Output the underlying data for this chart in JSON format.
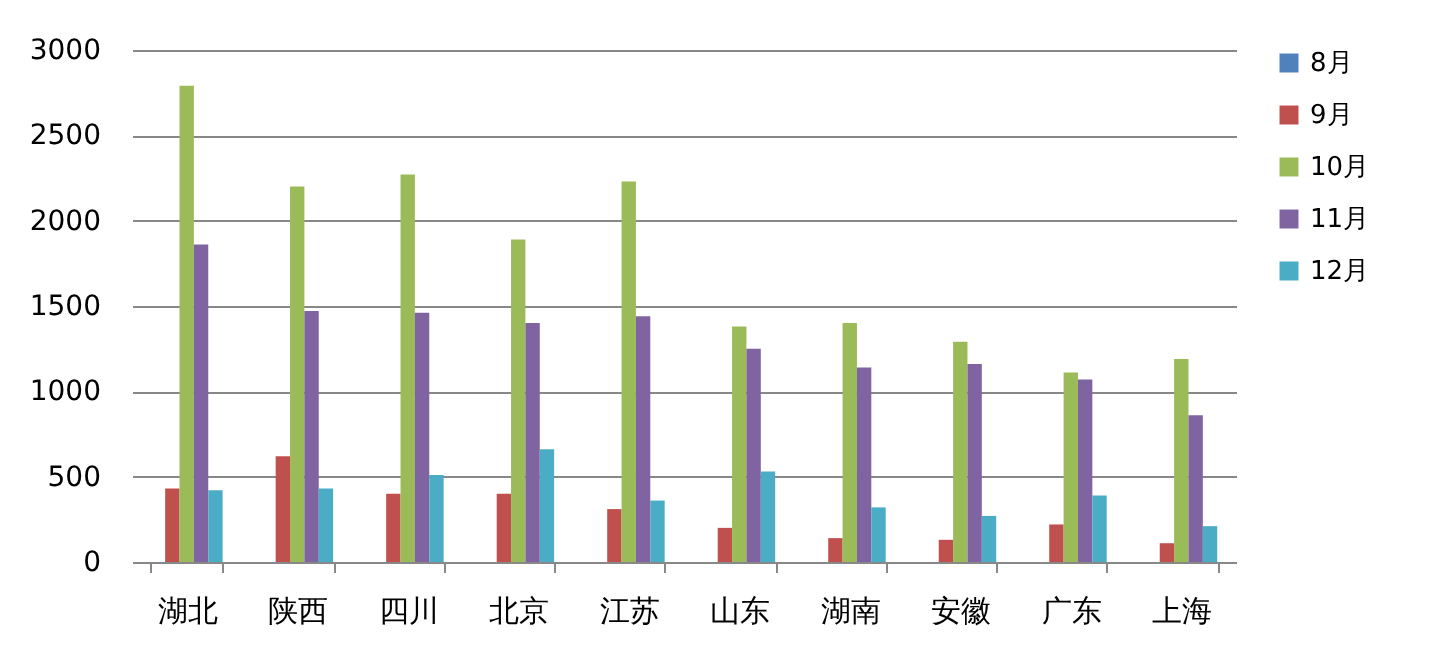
{
  "chart_data": {
    "type": "bar",
    "categories": [
      "湖北",
      "陕西",
      "四川",
      "北京",
      "江苏",
      "山东",
      "湖南",
      "安徽",
      "广东",
      "上海"
    ],
    "series": [
      {
        "name": "8月",
        "color": "#4f81bd",
        "values": [
          0,
          0,
          0,
          0,
          0,
          0,
          0,
          0,
          0,
          0
        ]
      },
      {
        "name": "9月",
        "color": "#c0504d",
        "values": [
          430,
          620,
          400,
          400,
          310,
          200,
          140,
          130,
          220,
          110
        ]
      },
      {
        "name": "10月",
        "color": "#9bbb59",
        "values": [
          2790,
          2200,
          2270,
          1890,
          2230,
          1380,
          1400,
          1290,
          1110,
          1190
        ]
      },
      {
        "name": "11月",
        "color": "#8064a2",
        "values": [
          1860,
          1470,
          1460,
          1400,
          1440,
          1250,
          1140,
          1160,
          1070,
          860
        ]
      },
      {
        "name": "12月",
        "color": "#4bacc6",
        "values": [
          420,
          430,
          510,
          660,
          360,
          530,
          320,
          270,
          390,
          210
        ]
      }
    ],
    "ylim": [
      0,
      3000
    ],
    "yticks": [
      0,
      500,
      1000,
      1500,
      2000,
      2500,
      3000
    ],
    "grid": "y",
    "legend": "right"
  }
}
